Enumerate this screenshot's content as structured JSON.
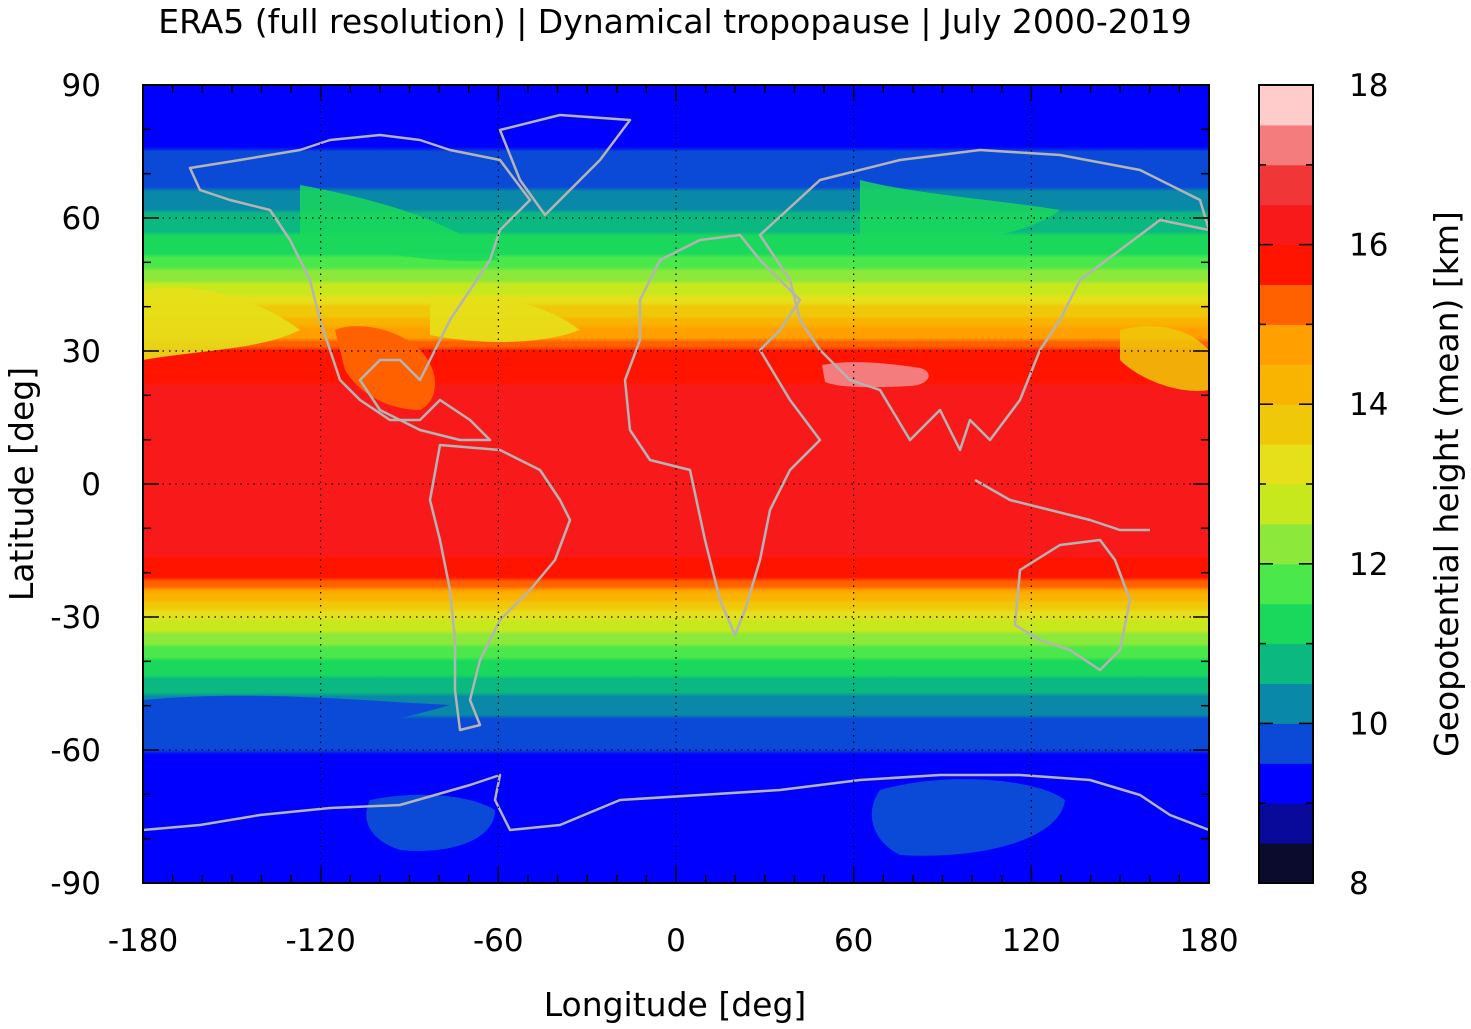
{
  "chart_data": {
    "type": "heatmap",
    "title": "ERA5 (full resolution) | Dynamical tropopause | July 2000-2019",
    "xlabel": "Longitude [deg]",
    "ylabel": "Latitude [deg]",
    "colorbar_label": "Geopotential height (mean) [km]",
    "xlim": [
      -180,
      180
    ],
    "ylim": [
      -90,
      90
    ],
    "xticks": [
      -180,
      -120,
      -60,
      0,
      60,
      120,
      180
    ],
    "yticks": [
      90,
      60,
      30,
      0,
      -30,
      -60,
      -90
    ],
    "clim": [
      8,
      18
    ],
    "cticks": [
      18,
      16,
      14,
      12,
      10,
      8
    ],
    "grid": true,
    "colorbar_levels": [
      {
        "from": 8.0,
        "to": 8.5,
        "color": "#0b0b2e"
      },
      {
        "from": 8.5,
        "to": 9.0,
        "color": "#0a0a9a"
      },
      {
        "from": 9.0,
        "to": 9.5,
        "color": "#0000ff"
      },
      {
        "from": 9.5,
        "to": 10.0,
        "color": "#0a4ad6"
      },
      {
        "from": 10.0,
        "to": 10.5,
        "color": "#0a88a8"
      },
      {
        "from": 10.5,
        "to": 11.0,
        "color": "#0ab880"
      },
      {
        "from": 11.0,
        "to": 11.5,
        "color": "#1ad85c"
      },
      {
        "from": 11.5,
        "to": 12.0,
        "color": "#4ae84a"
      },
      {
        "from": 12.0,
        "to": 12.5,
        "color": "#8ce83a"
      },
      {
        "from": 12.5,
        "to": 13.0,
        "color": "#c8e81e"
      },
      {
        "from": 13.0,
        "to": 13.5,
        "color": "#e6e01a"
      },
      {
        "from": 13.5,
        "to": 14.0,
        "color": "#f0c80a"
      },
      {
        "from": 14.0,
        "to": 14.5,
        "color": "#f8b400"
      },
      {
        "from": 14.5,
        "to": 15.0,
        "color": "#ffa000"
      },
      {
        "from": 15.0,
        "to": 15.5,
        "color": "#ff6000"
      },
      {
        "from": 15.5,
        "to": 16.0,
        "color": "#ff1400"
      },
      {
        "from": 16.0,
        "to": 16.5,
        "color": "#f81a1a"
      },
      {
        "from": 16.5,
        "to": 17.0,
        "color": "#f03636"
      },
      {
        "from": 17.0,
        "to": 17.5,
        "color": "#f47c7c"
      },
      {
        "from": 17.5,
        "to": 18.0,
        "color": "#ffcccc"
      }
    ],
    "zonal_profile_latitudes": [
      90,
      80,
      70,
      60,
      50,
      40,
      30,
      20,
      10,
      0,
      -10,
      -20,
      -30,
      -40,
      -50,
      -60,
      -70,
      -80,
      -90
    ],
    "zonal_profile_height_km": [
      9.1,
      9.3,
      9.7,
      10.6,
      11.7,
      13.5,
      15.6,
      16.1,
      16.3,
      16.4,
      16.2,
      15.9,
      13.0,
      11.4,
      10.2,
      9.5,
      9.2,
      9.1,
      9.0
    ],
    "coastline_color": "#b4b4b4"
  }
}
